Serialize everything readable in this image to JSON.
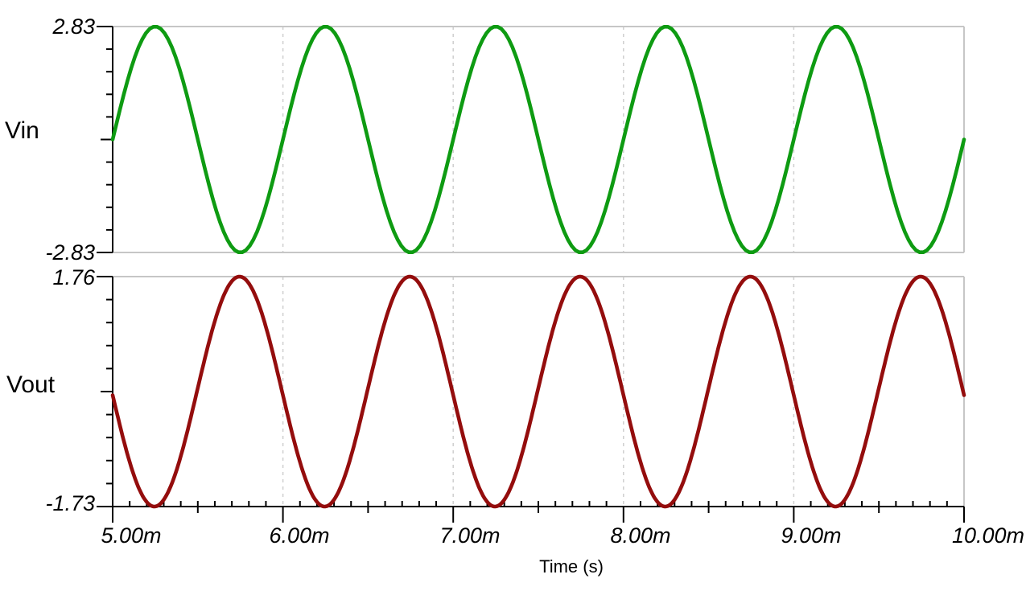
{
  "window": {
    "background_color": "#ffffff",
    "text_color": "#000000"
  },
  "chart_data": {
    "type": "line",
    "title": "",
    "xlabel": "Time (s)",
    "x_unit_suffix": "m",
    "x_range_ms": [
      5.0,
      10.0
    ],
    "x_major_ticks_ms": [
      5.0,
      6.0,
      7.0,
      8.0,
      9.0,
      10.0
    ],
    "x_tick_labels": [
      "5.00m",
      "6.00m",
      "7.00m",
      "8.00m",
      "9.00m",
      "10.00m"
    ],
    "x_minor_tick_interval_ms": 0.1,
    "grid": "dashed-vertical-at-majors",
    "grid_color": "#c6c6c6",
    "axis_color": "#000000",
    "legend_position": "left-of-each-panel",
    "panels": [
      {
        "trace": "Vin",
        "color": "#0e9b12",
        "label_color": "#000000",
        "ylim": [
          -2.83,
          2.83
        ],
        "y_tick_labels": {
          "top": "2.83",
          "bottom": "-2.83"
        },
        "y_divisions": 10,
        "waveform": {
          "shape": "sine",
          "amplitude": 2.83,
          "dc_offset": 0,
          "period_ms": 1.0,
          "phase_deg": 0,
          "samples_per_period": 46
        }
      },
      {
        "trace": "Vout",
        "color": "#940d0d",
        "label_color": "#940d0d",
        "ylim": [
          -1.73,
          1.76
        ],
        "y_tick_labels": {
          "top": "1.76",
          "bottom": "-1.73"
        },
        "y_divisions": 10,
        "waveform": {
          "shape": "sine",
          "amplitude": 1.745,
          "dc_offset": 0.015,
          "period_ms": 1.0,
          "phase_deg": 181.8,
          "samples_per_period": 120
        }
      }
    ]
  }
}
